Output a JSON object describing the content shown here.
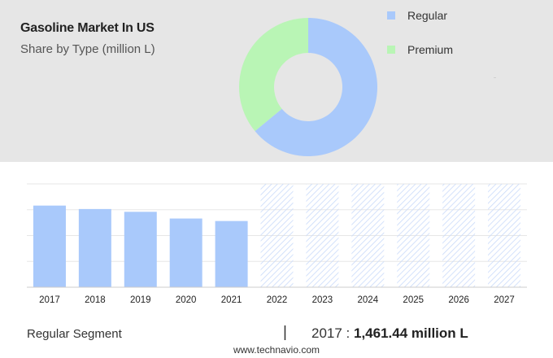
{
  "header": {
    "title": "Gasoline Market In US",
    "subtitle": "Share by Type (million L)"
  },
  "legend": [
    {
      "label": "Regular",
      "color": "#a9c9fb"
    },
    {
      "label": "Premium",
      "color": "#b9f5b5"
    }
  ],
  "footer": {
    "segment": "Regular Segment",
    "separator": "|",
    "year": "2017",
    "colon": " : ",
    "value": "1,461.44 million L",
    "site": "www.technavio.com"
  },
  "colors": {
    "top_background": "#e6e6e6",
    "bar": "#a9c9fb",
    "forecast_hatch": "#c9dafa",
    "axis": "#cccccc"
  },
  "chart_data": [
    {
      "type": "pie",
      "style": "donut",
      "labels": [
        "Regular",
        "Premium"
      ],
      "values": [
        64,
        36
      ],
      "unit": "percent share"
    },
    {
      "type": "bar",
      "categories": [
        "2017",
        "2018",
        "2019",
        "2020",
        "2021",
        "2022",
        "2023",
        "2024",
        "2025",
        "2026",
        "2027"
      ],
      "values": [
        1461.44,
        1400,
        1350,
        1230,
        1185,
        null,
        null,
        null,
        null,
        null,
        null
      ],
      "forecast": [
        false,
        false,
        false,
        false,
        false,
        true,
        true,
        true,
        true,
        true,
        true
      ],
      "ylim": [
        0,
        1850
      ],
      "grid": true,
      "ytick_labels_shown": false
    }
  ]
}
